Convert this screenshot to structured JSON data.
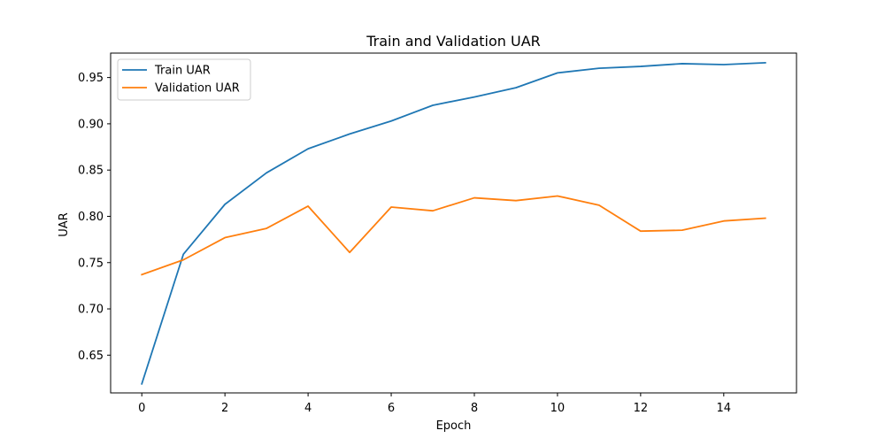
{
  "chart_data": {
    "type": "line",
    "title": "Train and Validation UAR",
    "xlabel": "Epoch",
    "ylabel": "UAR",
    "x": [
      0,
      1,
      2,
      3,
      4,
      5,
      6,
      7,
      8,
      9,
      10,
      11,
      12,
      13,
      14,
      15
    ],
    "series": [
      {
        "name": "Train UAR",
        "color": "#1f77b4",
        "values": [
          0.619,
          0.759,
          0.813,
          0.847,
          0.873,
          0.889,
          0.903,
          0.92,
          0.929,
          0.939,
          0.955,
          0.96,
          0.962,
          0.965,
          0.964,
          0.966
        ]
      },
      {
        "name": "Validation UAR",
        "color": "#ff7f0e",
        "values": [
          0.737,
          0.753,
          0.777,
          0.787,
          0.811,
          0.761,
          0.81,
          0.806,
          0.82,
          0.817,
          0.822,
          0.812,
          0.784,
          0.785,
          0.795,
          0.798
        ]
      }
    ],
    "xlim": [
      -0.75,
      15.75
    ],
    "ylim": [
      0.6092,
      0.9764
    ],
    "xticks": [
      0,
      2,
      4,
      6,
      8,
      10,
      12,
      14
    ],
    "xtick_labels": [
      "0",
      "2",
      "4",
      "6",
      "8",
      "10",
      "12",
      "14"
    ],
    "yticks": [
      0.65,
      0.7,
      0.75,
      0.8,
      0.85,
      0.9,
      0.95
    ],
    "ytick_labels": [
      "0.65",
      "0.70",
      "0.75",
      "0.80",
      "0.85",
      "0.90",
      "0.95"
    ],
    "grid": false,
    "legend_position": "top-left"
  }
}
